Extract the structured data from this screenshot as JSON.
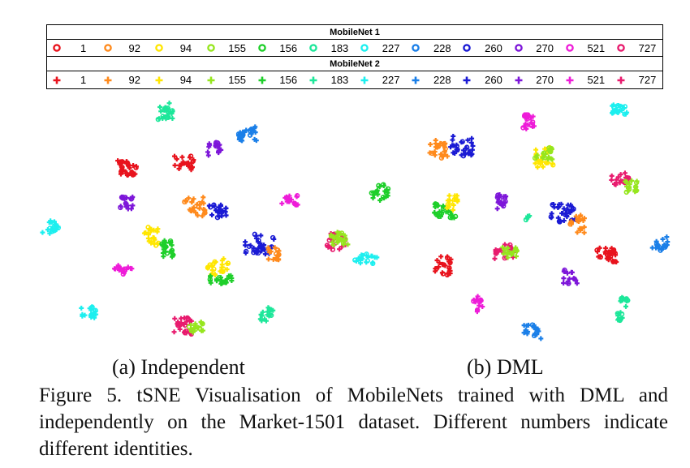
{
  "legend": {
    "group1": {
      "title": "MobileNet 1",
      "marker": "circle",
      "items": [
        {
          "label": "1",
          "color": "#e8131d"
        },
        {
          "label": "92",
          "color": "#ff8a1c"
        },
        {
          "label": "94",
          "color": "#ffe600"
        },
        {
          "label": "155",
          "color": "#96e61e"
        },
        {
          "label": "156",
          "color": "#1ecf2a"
        },
        {
          "label": "183",
          "color": "#1de79a"
        },
        {
          "label": "227",
          "color": "#1cefef"
        },
        {
          "label": "228",
          "color": "#1a7fe8"
        },
        {
          "label": "260",
          "color": "#1a1ad4"
        },
        {
          "label": "270",
          "color": "#7d16d9"
        },
        {
          "label": "521",
          "color": "#ee1cd8"
        },
        {
          "label": "727",
          "color": "#e81b6e"
        }
      ]
    },
    "group2": {
      "title": "MobileNet 2",
      "marker": "plus",
      "items": [
        {
          "label": "1",
          "color": "#e8131d"
        },
        {
          "label": "92",
          "color": "#ff8a1c"
        },
        {
          "label": "94",
          "color": "#ffe600"
        },
        {
          "label": "155",
          "color": "#96e61e"
        },
        {
          "label": "156",
          "color": "#1ecf2a"
        },
        {
          "label": "183",
          "color": "#1de79a"
        },
        {
          "label": "227",
          "color": "#1cefef"
        },
        {
          "label": "228",
          "color": "#1a7fe8"
        },
        {
          "label": "260",
          "color": "#1a1ad4"
        },
        {
          "label": "270",
          "color": "#7d16d9"
        },
        {
          "label": "521",
          "color": "#ee1cd8"
        },
        {
          "label": "727",
          "color": "#e81b6e"
        }
      ]
    }
  },
  "subcaptions": {
    "a": "(a) Independent",
    "b": "(b) DML"
  },
  "figure_caption": "Figure 5. tSNE Visualisation of MobileNets trained with DML and independently on the Market-1501 dataset. Different numbers indicate different identities."
}
